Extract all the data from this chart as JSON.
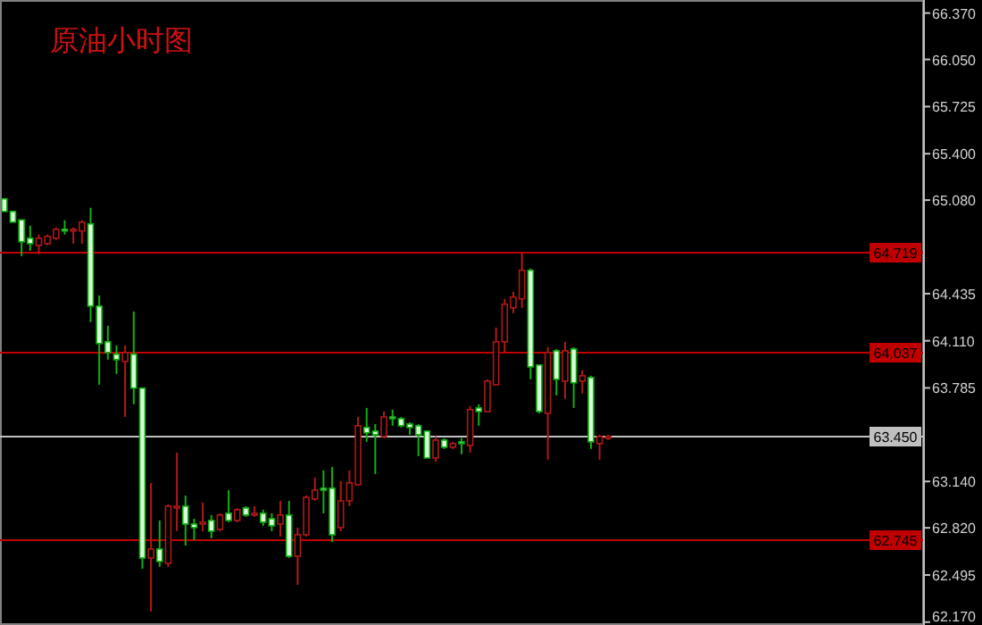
{
  "chart_data": {
    "type": "candlestick",
    "title": "原油小时图",
    "categories": [
      null,
      null,
      null,
      null,
      null,
      null,
      null,
      null,
      null,
      null,
      null,
      null,
      null,
      null,
      null,
      null,
      null,
      null,
      null,
      null,
      null,
      null,
      null,
      null,
      null,
      null,
      null,
      null,
      null,
      null,
      null,
      null,
      null,
      null,
      null,
      null,
      null,
      null,
      null,
      null,
      null,
      null,
      null,
      null,
      null,
      null,
      null,
      null,
      null,
      null,
      null,
      null,
      null,
      null,
      null,
      null,
      null,
      null,
      null,
      null,
      null,
      null,
      null,
      null,
      null,
      null,
      null,
      null,
      null,
      null,
      null,
      null,
      null,
      null,
      null,
      null,
      null,
      null,
      null,
      null,
      null,
      null,
      null,
      null,
      null,
      null,
      null,
      null,
      null,
      null,
      null,
      null,
      null,
      null,
      null,
      null,
      null,
      null,
      null,
      null,
      null,
      null,
      null,
      null,
      null,
      null,
      null
    ],
    "ohlc": [
      [
        65.089,
        65.089,
        65.002,
        65.002
      ],
      [
        65.002,
        65.002,
        64.928,
        64.928
      ],
      [
        64.944,
        64.944,
        64.694,
        64.793
      ],
      [
        64.817,
        64.904,
        64.731,
        64.78
      ],
      [
        64.768,
        64.842,
        64.707,
        64.817
      ],
      [
        64.78,
        64.842,
        64.768,
        64.83
      ],
      [
        64.817,
        64.891,
        64.805,
        64.879
      ],
      [
        64.879,
        64.941,
        64.842,
        64.867
      ],
      [
        64.867,
        64.891,
        64.78,
        64.879
      ],
      [
        64.867,
        64.941,
        64.78,
        64.928
      ],
      [
        64.916,
        65.027,
        64.238,
        64.349
      ],
      [
        64.349,
        64.423,
        63.807,
        64.091
      ],
      [
        64.103,
        64.214,
        63.98,
        64.029
      ],
      [
        64.017,
        64.078,
        63.881,
        63.98
      ],
      [
        63.967,
        64.078,
        63.585,
        64.029
      ],
      [
        64.017,
        64.312,
        63.672,
        63.783
      ],
      [
        63.783,
        63.783,
        62.538,
        62.612
      ],
      [
        62.612,
        63.13,
        62.243,
        62.674
      ],
      [
        62.674,
        62.871,
        62.551,
        62.588
      ],
      [
        62.575,
        62.982,
        62.551,
        62.969
      ],
      [
        62.957,
        63.339,
        62.797,
        62.969
      ],
      [
        62.969,
        63.043,
        62.698,
        62.846
      ],
      [
        62.846,
        62.883,
        62.735,
        62.822
      ],
      [
        62.846,
        62.994,
        62.797,
        62.859
      ],
      [
        62.871,
        62.908,
        62.748,
        62.797
      ],
      [
        62.809,
        62.92,
        62.797,
        62.908
      ],
      [
        62.92,
        63.08,
        62.859,
        62.871
      ],
      [
        62.871,
        62.957,
        62.859,
        62.945
      ],
      [
        62.957,
        62.969,
        62.896,
        62.908
      ],
      [
        62.908,
        62.969,
        62.896,
        62.92
      ],
      [
        62.92,
        62.945,
        62.834,
        62.859
      ],
      [
        62.883,
        62.92,
        62.797,
        62.834
      ],
      [
        62.846,
        63.006,
        62.76,
        62.908
      ],
      [
        62.908,
        63.006,
        62.612,
        62.624
      ],
      [
        62.624,
        62.822,
        62.427,
        62.772
      ],
      [
        62.772,
        63.043,
        62.76,
        63.031
      ],
      [
        63.019,
        63.167,
        63.006,
        63.08
      ],
      [
        63.093,
        63.216,
        62.92,
        63.08
      ],
      [
        63.093,
        63.24,
        62.723,
        62.772
      ],
      [
        62.822,
        63.142,
        62.797,
        63.006
      ],
      [
        63.006,
        63.216,
        62.969,
        63.13
      ],
      [
        63.117,
        63.585,
        63.117,
        63.524
      ],
      [
        63.512,
        63.647,
        63.413,
        63.475
      ],
      [
        63.487,
        63.536,
        63.191,
        63.462
      ],
      [
        63.45,
        63.622,
        63.438,
        63.585
      ],
      [
        63.585,
        63.635,
        63.524,
        63.573
      ],
      [
        63.573,
        63.585,
        63.512,
        63.524
      ],
      [
        63.536,
        63.548,
        63.462,
        63.512
      ],
      [
        63.524,
        63.536,
        63.314,
        63.462
      ],
      [
        63.487,
        63.487,
        63.302,
        63.302
      ],
      [
        63.302,
        63.45,
        63.277,
        63.425
      ],
      [
        63.425,
        63.438,
        63.364,
        63.376
      ],
      [
        63.376,
        63.413,
        63.364,
        63.401
      ],
      [
        63.413,
        63.438,
        63.327,
        63.401
      ],
      [
        63.388,
        63.659,
        63.339,
        63.635
      ],
      [
        63.647,
        63.672,
        63.524,
        63.622
      ],
      [
        63.622,
        63.844,
        63.622,
        63.832
      ],
      [
        63.807,
        64.201,
        63.807,
        64.103
      ],
      [
        64.103,
        64.399,
        64.029,
        64.362
      ],
      [
        64.337,
        64.448,
        64.3,
        64.411
      ],
      [
        64.399,
        64.719,
        64.337,
        64.596
      ],
      [
        64.596,
        64.608,
        63.844,
        63.93
      ],
      [
        63.943,
        63.943,
        63.61,
        63.622
      ],
      [
        63.61,
        64.066,
        63.29,
        64.029
      ],
      [
        64.041,
        64.054,
        63.733,
        63.844
      ],
      [
        63.832,
        64.103,
        63.709,
        64.041
      ],
      [
        64.054,
        64.066,
        63.647,
        63.82
      ],
      [
        63.832,
        63.906,
        63.746,
        63.869
      ],
      [
        63.856,
        63.869,
        63.364,
        63.413
      ],
      [
        63.401,
        63.462,
        63.29,
        63.45
      ],
      [
        63.438,
        63.462,
        63.425,
        63.45
      ],
      null,
      null,
      null,
      null,
      null,
      null,
      null,
      null,
      null,
      null,
      null,
      null,
      null,
      null,
      null,
      null,
      null,
      null,
      null,
      null,
      null,
      null,
      null,
      null,
      null,
      null,
      null,
      null,
      null,
      null,
      null,
      null,
      null,
      null,
      null,
      null
    ],
    "ylim": [
      62.15,
      66.46
    ],
    "yticks": [
      {
        "value": 62.17,
        "label": "62.170"
      },
      {
        "value": 62.495,
        "label": "62.495"
      },
      {
        "value": 62.82,
        "label": "62.820"
      },
      {
        "value": 63.14,
        "label": "63.140"
      },
      {
        "value": 63.785,
        "label": "63.785"
      },
      {
        "value": 64.11,
        "label": "64.110"
      },
      {
        "value": 64.435,
        "label": "64.435"
      },
      {
        "value": 65.08,
        "label": "65.080"
      },
      {
        "value": 65.4,
        "label": "65.400"
      },
      {
        "value": 65.725,
        "label": "65.725"
      },
      {
        "value": 66.05,
        "label": "66.050"
      },
      {
        "value": 66.37,
        "label": "66.370"
      }
    ],
    "ref_lines": [
      {
        "axis": "y",
        "value": 64.719,
        "label": "64.719",
        "color": "#c00000"
      },
      {
        "axis": "y",
        "value": 64.037,
        "label": "64.037",
        "color": "#c00000"
      },
      {
        "axis": "y",
        "value": 63.45,
        "label": "63.450",
        "color": "#c0c0c0"
      },
      {
        "axis": "y",
        "value": 62.745,
        "label": "62.745",
        "color": "#c00000"
      }
    ],
    "tick_labels": "y",
    "grid": false
  }
}
